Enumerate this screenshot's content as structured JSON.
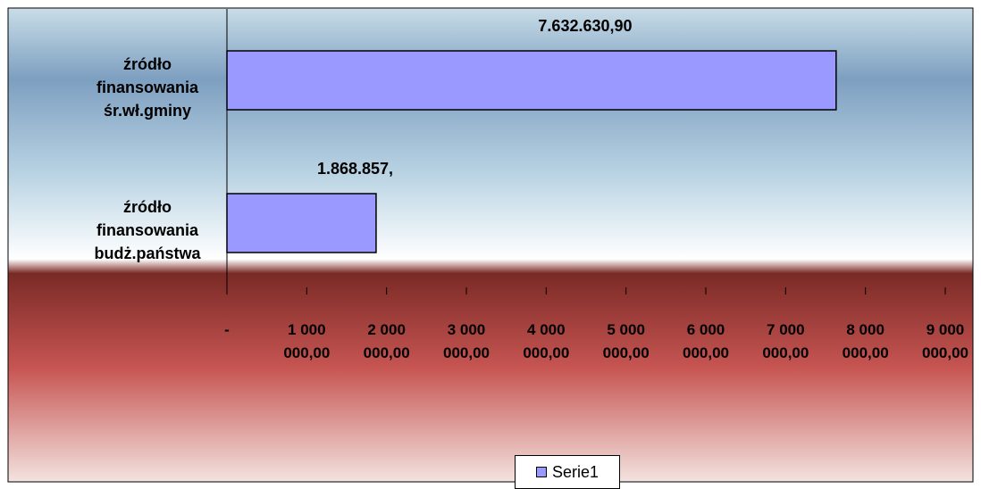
{
  "chart_data": {
    "type": "bar",
    "orientation": "horizontal",
    "categories": [
      "źródło finansowania śr.wł.gminy",
      "źródło finansowania budż.państwa"
    ],
    "series": [
      {
        "name": "Serie1",
        "color": "#9999ff",
        "values": [
          7632630.9,
          1868857
        ],
        "value_labels": [
          "7.632.630,90",
          "1.868.857,"
        ]
      }
    ],
    "xlim": [
      0,
      9000000
    ],
    "xticks": [
      {
        "value": 0,
        "label": "-"
      },
      {
        "value": 1000000,
        "label": "1 000 000,00"
      },
      {
        "value": 2000000,
        "label": "2 000 000,00"
      },
      {
        "value": 3000000,
        "label": "3 000 000,00"
      },
      {
        "value": 4000000,
        "label": "4 000 000,00"
      },
      {
        "value": 5000000,
        "label": "5 000 000,00"
      },
      {
        "value": 6000000,
        "label": "6 000 000,00"
      },
      {
        "value": 7000000,
        "label": "7 000 000,00"
      },
      {
        "value": 8000000,
        "label": "8 000 000,00"
      },
      {
        "value": 9000000,
        "label": "9 000 000,00"
      }
    ],
    "legend": "bottom"
  }
}
